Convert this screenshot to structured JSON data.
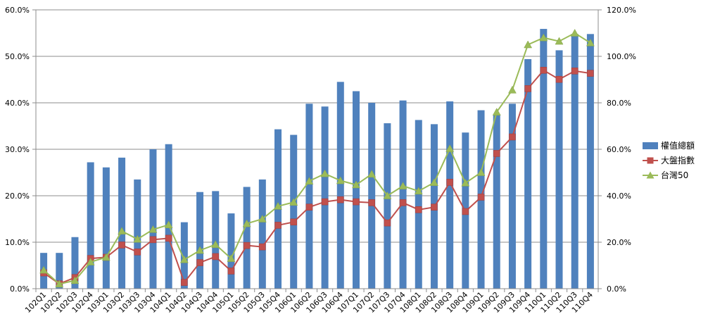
{
  "chart_data": {
    "type": "bar",
    "categories": [
      "102Q1",
      "102Q2",
      "102Q3",
      "102Q4",
      "103Q1",
      "103Q2",
      "103Q3",
      "103Q4",
      "104Q1",
      "104Q2",
      "104Q3",
      "104Q4",
      "105Q1",
      "105Q2",
      "105Q3",
      "105Q4",
      "106Q1",
      "106Q2",
      "106Q3",
      "106Q4",
      "107Q1",
      "107Q2",
      "107Q3",
      "107Q4",
      "108Q1",
      "108Q2",
      "108Q3",
      "108Q4",
      "109Q1",
      "109Q2",
      "109Q3",
      "109Q4",
      "110Q1",
      "110Q2",
      "110Q3",
      "110Q4"
    ],
    "series": [
      {
        "name": "權值總額",
        "type": "bar",
        "axis": "left",
        "color": "#4f81bd",
        "values": [
          7.7,
          7.7,
          11.1,
          27.2,
          26.1,
          28.2,
          23.5,
          30.0,
          31.1,
          14.3,
          20.8,
          21.0,
          16.2,
          21.9,
          23.5,
          34.3,
          33.1,
          39.8,
          39.2,
          44.5,
          42.5,
          40.0,
          35.6,
          40.5,
          36.3,
          35.4,
          40.3,
          33.6,
          38.4,
          37.5,
          39.8,
          49.4,
          55.9,
          51.3,
          54.8,
          54.8
        ]
      },
      {
        "name": "大盤指數",
        "type": "line",
        "axis": "right",
        "color": "#c0504d",
        "marker": "square",
        "values": [
          6.8,
          2.1,
          4.8,
          13.0,
          13.5,
          18.8,
          15.8,
          21.1,
          21.7,
          2.7,
          11.2,
          13.8,
          7.6,
          18.6,
          18.0,
          27.3,
          28.7,
          35.1,
          37.4,
          38.3,
          37.4,
          37.0,
          28.3,
          37.0,
          34.0,
          35.1,
          45.8,
          33.2,
          39.4,
          58.2,
          65.3,
          86.1,
          94.0,
          90.1,
          93.7,
          92.7
        ]
      },
      {
        "name": "台灣50",
        "type": "line",
        "axis": "right",
        "color": "#9bbb59",
        "marker": "triangle",
        "values": [
          8.0,
          2.0,
          3.5,
          11.5,
          13.5,
          24.8,
          21.3,
          25.5,
          27.5,
          12.5,
          16.5,
          19.0,
          13.0,
          28.0,
          30.0,
          35.5,
          37.2,
          46.3,
          49.5,
          46.5,
          44.7,
          49.3,
          40.0,
          44.2,
          42.0,
          45.7,
          60.3,
          45.5,
          50.0,
          76.0,
          85.5,
          105.0,
          108.0,
          106.5,
          110.0,
          105.8
        ]
      }
    ],
    "y_left": {
      "min": 0,
      "max": 60,
      "step": 10,
      "tick_labels": [
        "0.0%",
        "10.0%",
        "20.0%",
        "30.0%",
        "40.0%",
        "50.0%",
        "60.0%"
      ]
    },
    "y_right": {
      "min": 0,
      "max": 120,
      "step": 20,
      "tick_labels": [
        "0.0%",
        "20.0%",
        "40.0%",
        "60.0%",
        "80.0%",
        "100.0%",
        "120.0%"
      ]
    },
    "grid": true,
    "legend": {
      "placement": "right"
    },
    "title": "",
    "xlabel": "",
    "ylabel": ""
  }
}
